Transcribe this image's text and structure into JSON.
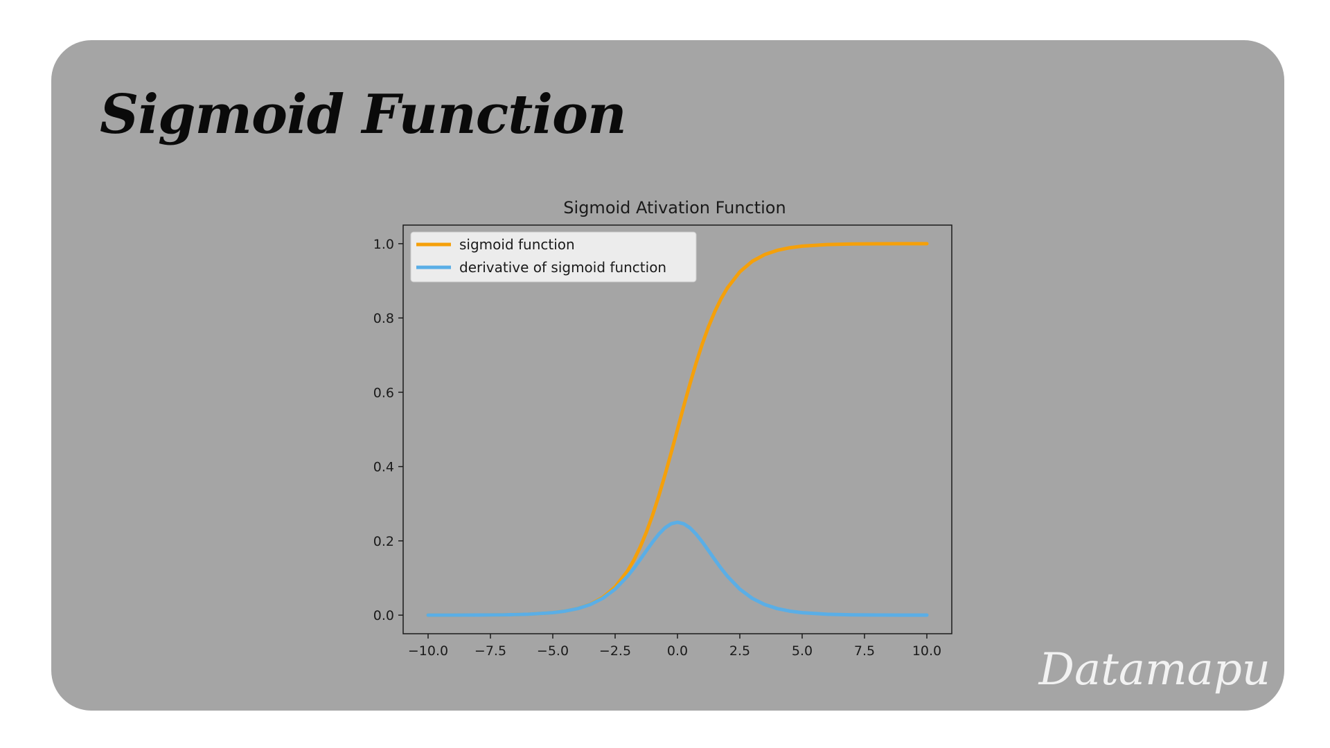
{
  "slide": {
    "title": "Sigmoid Function",
    "brand": "Datamapu"
  },
  "colors": {
    "background": "#a5a5a5",
    "sigmoid": "#f5a00a",
    "derivative": "#5aaee6",
    "legend_bg": "#ececec"
  },
  "chart_data": {
    "type": "line",
    "title": "Sigmoid Ativation Function",
    "xlabel": "",
    "ylabel": "",
    "xlim": [
      -11.0,
      11.0
    ],
    "ylim": [
      -0.05,
      1.05
    ],
    "xticks": [
      -10.0,
      -7.5,
      -5.0,
      -2.5,
      0.0,
      2.5,
      5.0,
      7.5,
      10.0
    ],
    "xtick_labels": [
      "−10.0",
      "−7.5",
      "−5.0",
      "−2.5",
      "0.0",
      "2.5",
      "5.0",
      "7.5",
      "10.0"
    ],
    "yticks": [
      0.0,
      0.2,
      0.4,
      0.6,
      0.8,
      1.0
    ],
    "ytick_labels": [
      "0.0",
      "0.2",
      "0.4",
      "0.6",
      "0.8",
      "1.0"
    ],
    "grid": false,
    "legend_position": "top-left",
    "x": [
      -10.0,
      -9.0,
      -8.0,
      -7.0,
      -6.0,
      -5.0,
      -4.5,
      -4.0,
      -3.5,
      -3.0,
      -2.5,
      -2.0,
      -1.75,
      -1.5,
      -1.25,
      -1.0,
      -0.75,
      -0.5,
      -0.25,
      0.0,
      0.25,
      0.5,
      0.75,
      1.0,
      1.25,
      1.5,
      1.75,
      2.0,
      2.5,
      3.0,
      3.5,
      4.0,
      4.5,
      5.0,
      6.0,
      7.0,
      8.0,
      9.0,
      10.0
    ],
    "series": [
      {
        "name": "sigmoid function",
        "color": "#f5a00a",
        "values": [
          0.0,
          0.0001,
          0.0003,
          0.0009,
          0.0025,
          0.0067,
          0.011,
          0.018,
          0.0293,
          0.0474,
          0.0759,
          0.1192,
          0.148,
          0.1824,
          0.2227,
          0.2689,
          0.3208,
          0.3775,
          0.4378,
          0.5,
          0.5622,
          0.6225,
          0.6792,
          0.7311,
          0.7773,
          0.8176,
          0.852,
          0.8808,
          0.9241,
          0.9526,
          0.9707,
          0.982,
          0.989,
          0.9933,
          0.9975,
          0.9991,
          0.9997,
          0.9999,
          1.0
        ]
      },
      {
        "name": "derivative of sigmoid function",
        "color": "#5aaee6",
        "values": [
          0.0,
          0.0001,
          0.0003,
          0.0009,
          0.0025,
          0.0066,
          0.0109,
          0.0177,
          0.0285,
          0.0452,
          0.0701,
          0.105,
          0.1261,
          0.1491,
          0.1731,
          0.1966,
          0.2179,
          0.235,
          0.2461,
          0.25,
          0.2461,
          0.235,
          0.2179,
          0.1966,
          0.1731,
          0.1491,
          0.1261,
          0.105,
          0.0701,
          0.0452,
          0.0285,
          0.0177,
          0.0109,
          0.0066,
          0.0025,
          0.0009,
          0.0003,
          0.0001,
          0.0
        ]
      }
    ]
  }
}
